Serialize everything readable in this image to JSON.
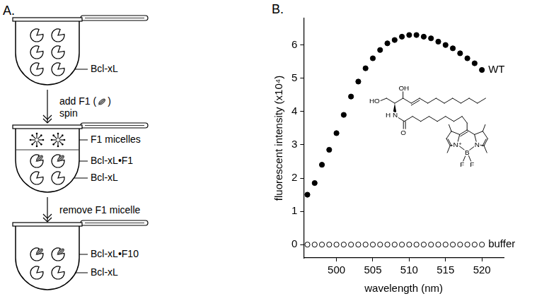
{
  "panel_labels": [
    "A.",
    "B."
  ],
  "diagram": {
    "tubes": [
      {
        "labels": [
          "Bcl-xL"
        ]
      },
      {
        "labels": [
          "F1 micelles",
          "Bcl-xL•F1",
          "Bcl-xL"
        ]
      },
      {
        "labels": [
          "Bcl-xL•F10",
          "Bcl-xL"
        ]
      }
    ],
    "steps": [
      {
        "lines": [
          [
            "add F1 (",
            ")"
          ],
          [
            "spin"
          ]
        ]
      },
      {
        "lines": [
          [
            "remove F1 micelle"
          ]
        ]
      }
    ]
  },
  "structure": {
    "hydroxyl_top": "OH",
    "hydroxyl_left": "HO",
    "amide_h": "H",
    "amide_n": "N",
    "carbonyl_o": "O",
    "bodipy_n_left": "N⁺",
    "bodipy_n_right": "N",
    "bodipy_b": "B",
    "bodipy_f_left": "F",
    "bodipy_f_right": "F"
  },
  "chart_data": {
    "type": "scatter",
    "x_label": "wavelength (nm)",
    "y_label": "fluorescent intensity (x10⁴)",
    "xlim": [
      495.5,
      523
    ],
    "xticks": [
      500,
      505,
      510,
      515,
      520
    ],
    "ylim": [
      -0.4,
      6.8
    ],
    "yticks": [
      0,
      1,
      2,
      3,
      4,
      5,
      6
    ],
    "grid": false,
    "x": [
      496,
      497,
      498,
      499,
      500,
      501,
      502,
      503,
      504,
      505,
      506,
      507,
      508,
      509,
      510,
      511,
      512,
      513,
      514,
      515,
      516,
      517,
      518,
      519,
      520
    ],
    "series": [
      {
        "name": "WT",
        "color": "#000000",
        "marker": "circle",
        "values": [
          1.5,
          1.85,
          2.4,
          2.85,
          3.35,
          3.9,
          4.45,
          4.9,
          5.3,
          5.6,
          5.85,
          6.05,
          6.15,
          6.25,
          6.3,
          6.3,
          6.25,
          6.2,
          6.1,
          6.0,
          5.9,
          5.75,
          5.6,
          5.45,
          5.25
        ]
      },
      {
        "name": "buffer",
        "color": "#000000",
        "marker": "open_circle",
        "values": [
          0,
          0,
          0,
          0,
          0,
          0,
          0,
          0,
          0,
          0,
          0,
          0,
          0,
          0,
          0,
          0,
          0,
          0,
          0,
          0,
          0,
          0,
          0,
          0,
          0
        ]
      }
    ]
  }
}
